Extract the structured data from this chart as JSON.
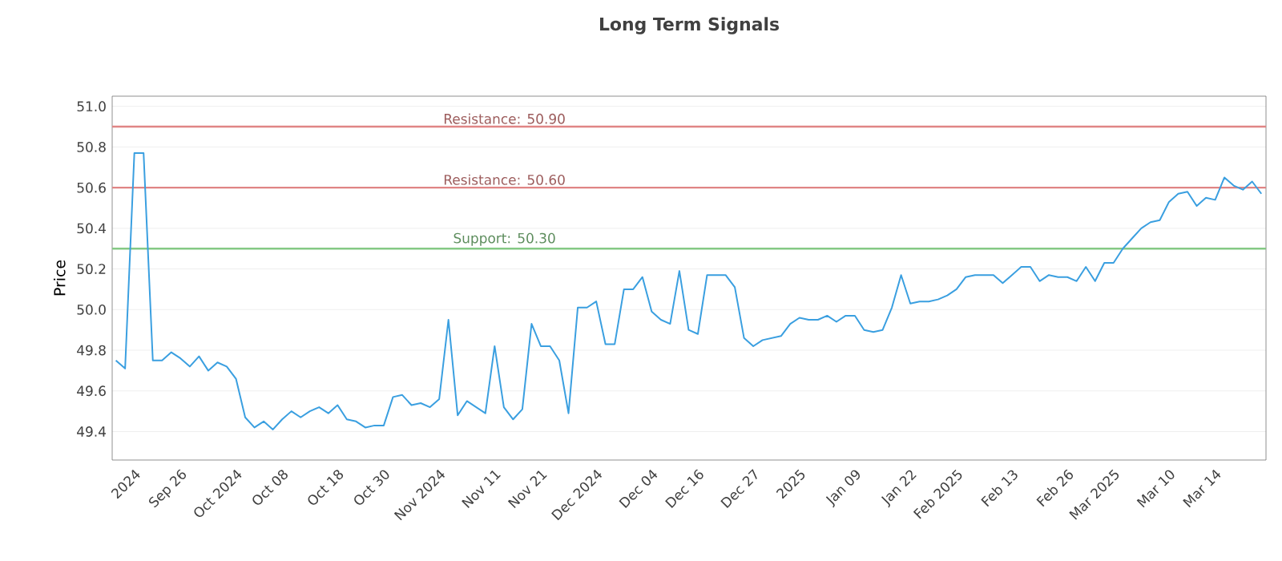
{
  "chart_data": {
    "type": "line",
    "title": "Long Term Signals",
    "ylabel": "Price",
    "categories": [
      null,
      null,
      "2024",
      null,
      null,
      null,
      null,
      "Sep 26",
      null,
      null,
      null,
      null,
      null,
      "Oct 2024",
      null,
      null,
      null,
      null,
      "Oct 08",
      null,
      null,
      null,
      null,
      null,
      "Oct 18",
      null,
      null,
      null,
      null,
      "Oct 30",
      null,
      null,
      null,
      null,
      null,
      "Nov 2024",
      null,
      null,
      null,
      null,
      null,
      "Nov 11",
      null,
      null,
      null,
      null,
      "Nov 21",
      null,
      null,
      null,
      null,
      null,
      "Dec 2024",
      null,
      null,
      null,
      null,
      null,
      "Dec 04",
      null,
      null,
      null,
      null,
      "Dec 16",
      null,
      null,
      null,
      null,
      null,
      "Dec 27",
      null,
      null,
      null,
      null,
      "2025",
      null,
      null,
      null,
      null,
      null,
      "Jan 09",
      null,
      null,
      null,
      null,
      null,
      "Jan 22",
      null,
      null,
      null,
      null,
      "Feb 2025",
      null,
      null,
      null,
      null,
      null,
      "Feb 13",
      null,
      null,
      null,
      null,
      null,
      "Feb 26",
      null,
      null,
      null,
      null,
      "Mar 2025",
      null,
      null,
      null,
      null,
      null,
      "Mar 10",
      null,
      null,
      null,
      null,
      "Mar 14",
      null,
      null,
      null,
      null,
      null
    ],
    "series": [
      {
        "color": "#3a9fe0",
        "values": [
          49.75,
          49.71,
          50.77,
          50.77,
          49.75,
          49.75,
          49.79,
          49.76,
          49.72,
          49.77,
          49.7,
          49.74,
          49.72,
          49.66,
          49.47,
          49.42,
          49.45,
          49.41,
          49.46,
          49.5,
          49.47,
          49.5,
          49.52,
          49.49,
          49.53,
          49.46,
          49.45,
          49.42,
          49.43,
          49.43,
          49.57,
          49.58,
          49.53,
          49.54,
          49.52,
          49.56,
          49.95,
          49.48,
          49.55,
          49.52,
          49.49,
          49.82,
          49.52,
          49.46,
          49.51,
          49.93,
          49.82,
          49.82,
          49.75,
          49.49,
          50.01,
          50.01,
          50.04,
          49.83,
          49.83,
          50.1,
          50.1,
          50.16,
          49.99,
          49.95,
          49.93,
          50.19,
          49.9,
          49.88,
          50.17,
          50.17,
          50.17,
          50.11,
          49.86,
          49.82,
          49.85,
          49.86,
          49.87,
          49.93,
          49.96,
          49.95,
          49.95,
          49.97,
          49.94,
          49.97,
          49.97,
          49.9,
          49.89,
          49.9,
          50.01,
          50.17,
          50.03,
          50.04,
          50.04,
          50.05,
          50.07,
          50.1,
          50.16,
          50.17,
          50.17,
          50.17,
          50.13,
          50.17,
          50.21,
          50.21,
          50.14,
          50.17,
          50.16,
          50.16,
          50.14,
          50.21,
          50.14,
          50.23,
          50.23,
          50.3,
          50.35,
          50.4,
          50.43,
          50.44,
          50.53,
          50.57,
          50.58,
          50.51,
          50.55,
          50.54,
          50.65,
          50.61,
          50.59,
          50.63,
          50.57
        ]
      }
    ],
    "ylim": [
      49.26,
      51.05
    ],
    "yticks": [
      {
        "value": 49.4,
        "label": "49.4"
      },
      {
        "value": 49.6,
        "label": "49.6"
      },
      {
        "value": 49.8,
        "label": "49.8"
      },
      {
        "value": 50.0,
        "label": "50.0"
      },
      {
        "value": 50.2,
        "label": "50.2"
      },
      {
        "value": 50.4,
        "label": "50.4"
      },
      {
        "value": 50.6,
        "label": "50.6"
      },
      {
        "value": 50.8,
        "label": "50.8"
      },
      {
        "value": 51.0,
        "label": "51.0"
      }
    ],
    "grid": "y",
    "marker": "none",
    "line_style": "solid",
    "ref_lines": [
      {
        "axis": "y",
        "value": 50.9,
        "label": "Resistance: 50.90",
        "color": "#e08585"
      },
      {
        "axis": "y",
        "value": 50.6,
        "label": "Resistance: 50.60",
        "color": "#e08585"
      },
      {
        "axis": "y",
        "value": 50.3,
        "label": "Support: 50.30",
        "color": "#85c985"
      }
    ]
  }
}
